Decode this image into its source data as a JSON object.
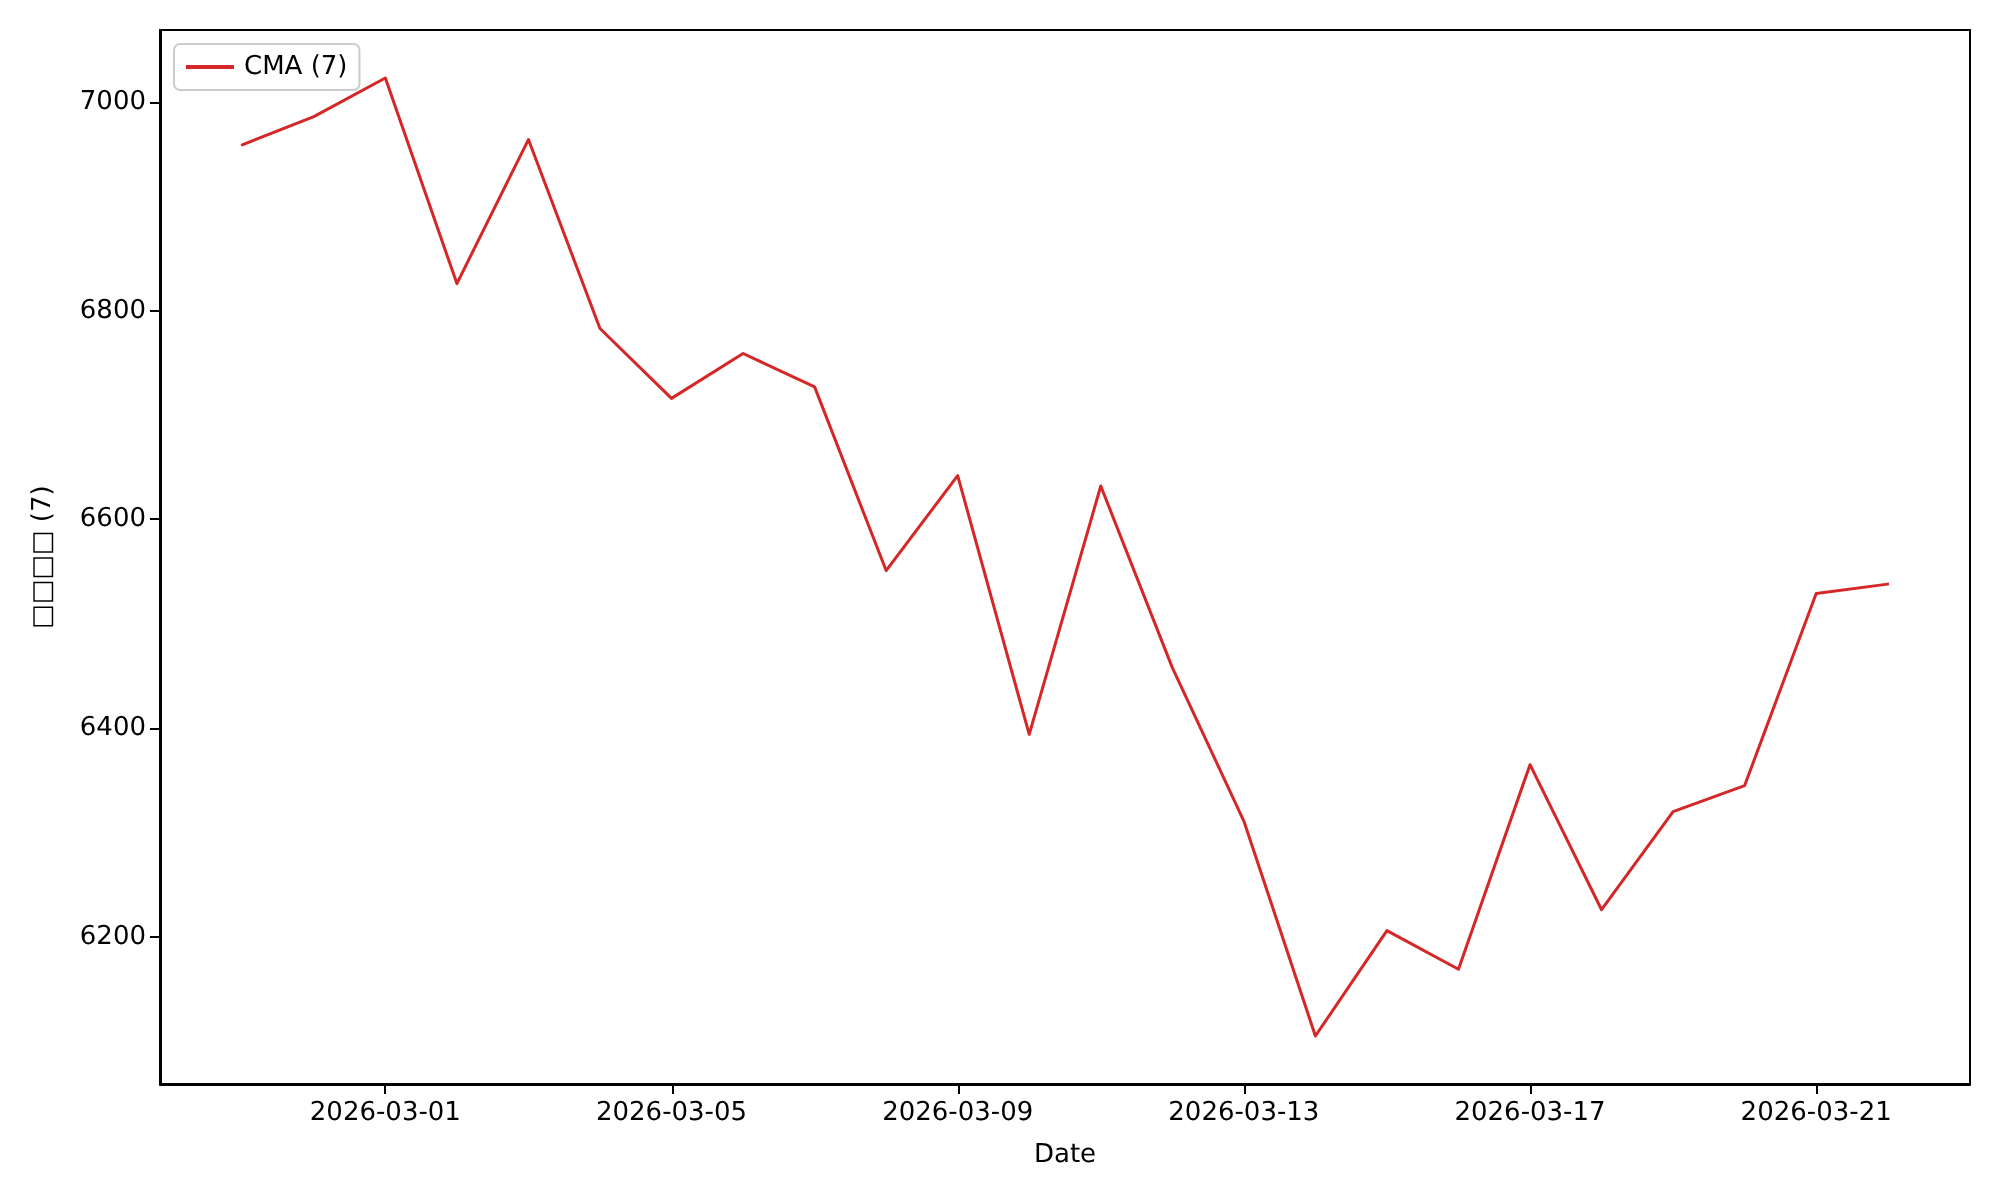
{
  "chart_data": {
    "type": "line",
    "xlabel": "Date",
    "ylabel": "□□□□ (7)",
    "x": [
      "2026-02-27",
      "2026-02-28",
      "2026-03-01",
      "2026-03-02",
      "2026-03-03",
      "2026-03-04",
      "2026-03-05",
      "2026-03-06",
      "2026-03-07",
      "2026-03-08",
      "2026-03-09",
      "2026-03-10",
      "2026-03-11",
      "2026-03-12",
      "2026-03-13",
      "2026-03-14",
      "2026-03-15",
      "2026-03-16",
      "2026-03-17",
      "2026-03-18",
      "2026-03-19",
      "2026-03-20",
      "2026-03-21",
      "2026-03-22"
    ],
    "series": [
      {
        "name": "CMA (7)",
        "color": "#d62728",
        "values": [
          6959,
          6986,
          7023,
          6826,
          6964,
          6783,
          6716,
          6759,
          6727,
          6551,
          6642,
          6394,
          6632,
          6458,
          6311,
          6105,
          6206,
          6169,
          6365,
          6226,
          6320,
          6345,
          6529,
          6538
        ]
      }
    ],
    "xlim": [
      "2026-02-25T20:24",
      "2026-03-23T03:36"
    ],
    "xticks": [
      "2026-03-01",
      "2026-03-05",
      "2026-03-09",
      "2026-03-13",
      "2026-03-17",
      "2026-03-21"
    ],
    "ylim": [
      6059,
      7069
    ],
    "yticks": [
      6200,
      6400,
      6600,
      6800,
      7000
    ],
    "legend": "top left",
    "grid": false
  }
}
